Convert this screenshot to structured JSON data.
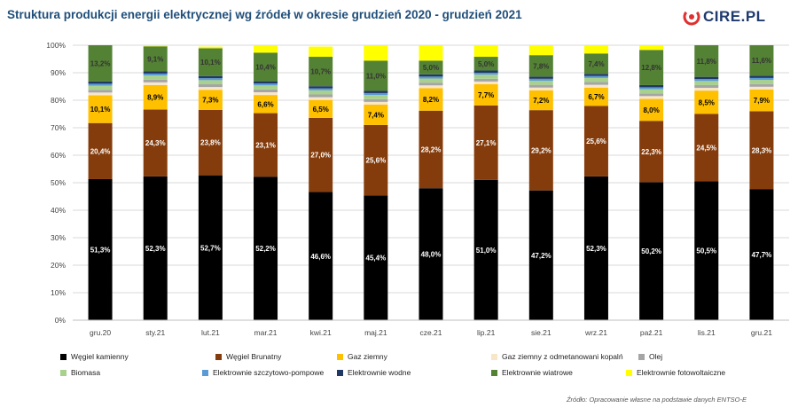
{
  "title": "Struktura produkcji energii elektrycznej wg źródeł w okresie grudzień 2020 - grudzień 2021",
  "logo_text": "CIRE.PL",
  "logo_icon": "cire-logo-icon",
  "source": "Źródło: Opracowanie własne na podstawie danych ENTSO-E",
  "chart_data": {
    "type": "bar",
    "stacked": true,
    "normalized": true,
    "categories": [
      "gru.20",
      "sty.21",
      "lut.21",
      "mar.21",
      "kwi.21",
      "maj.21",
      "cze.21",
      "lip.21",
      "sie.21",
      "wrz.21",
      "paź.21",
      "lis.21",
      "gru.21"
    ],
    "ylim": [
      0,
      100
    ],
    "yticks": [
      "0%",
      "10%",
      "20%",
      "30%",
      "40%",
      "50%",
      "60%",
      "70%",
      "80%",
      "90%",
      "100%"
    ],
    "grid": true,
    "legend_position": "bottom",
    "series": [
      {
        "name": "Węgiel kamienny",
        "color": "#000000",
        "label_color": "#ffffff",
        "values": [
          51.3,
          52.3,
          52.7,
          52.2,
          46.6,
          45.4,
          48.0,
          51.0,
          47.2,
          52.3,
          50.2,
          50.5,
          47.7
        ],
        "labels": [
          "51,3%",
          "52,3%",
          "52,7%",
          "52,2%",
          "46,6%",
          "45,4%",
          "48,0%",
          "51,0%",
          "47,2%",
          "52,3%",
          "50,2%",
          "50,5%",
          "47,7%"
        ]
      },
      {
        "name": "Węgiel Brunatny",
        "color": "#843c0c",
        "label_color": "#ffffff",
        "values": [
          20.4,
          24.3,
          23.8,
          23.1,
          27.0,
          25.6,
          28.2,
          27.1,
          29.2,
          25.6,
          22.3,
          24.5,
          28.3
        ],
        "labels": [
          "20,4%",
          "24,3%",
          "23,8%",
          "23,1%",
          "27,0%",
          "25,6%",
          "28,2%",
          "27,1%",
          "29,2%",
          "25,6%",
          "22,3%",
          "24,5%",
          "28,3%"
        ]
      },
      {
        "name": "Gaz  ziemny",
        "color": "#ffc000",
        "label_color": "#000000",
        "values": [
          10.1,
          8.9,
          7.3,
          6.6,
          6.5,
          7.4,
          8.2,
          7.7,
          7.2,
          6.7,
          8.0,
          8.5,
          7.9
        ],
        "labels": [
          "10,1%",
          "8,9%",
          "7,3%",
          "6,6%",
          "6,5%",
          "7,4%",
          "8,2%",
          "7,7%",
          "7,2%",
          "6,7%",
          "8,0%",
          "8,5%",
          "7,9%"
        ]
      },
      {
        "name": "Gaz ziemny z odmetanowani kopalń",
        "color": "#f8e6c8",
        "values": [
          1.0,
          1.0,
          1.0,
          1.0,
          1.0,
          1.0,
          1.0,
          1.0,
          1.0,
          1.0,
          1.0,
          1.0,
          1.0
        ]
      },
      {
        "name": "Olej",
        "color": "#a5a5a5",
        "values": [
          1.0,
          1.0,
          1.0,
          1.0,
          1.0,
          1.0,
          1.0,
          1.0,
          1.0,
          1.0,
          1.0,
          1.0,
          1.0
        ]
      },
      {
        "name": "Biomasa",
        "color": "#a9d18e",
        "values": [
          1.5,
          1.5,
          1.5,
          1.5,
          1.5,
          1.5,
          1.5,
          1.5,
          1.5,
          1.5,
          1.5,
          1.5,
          1.5
        ]
      },
      {
        "name": "Elektrownie szczytowo-pompowe",
        "color": "#5b9bd5",
        "values": [
          0.7,
          0.7,
          0.7,
          0.7,
          0.7,
          0.7,
          0.7,
          0.7,
          0.7,
          0.7,
          0.7,
          0.7,
          0.7
        ]
      },
      {
        "name": "Elektrownie wodne",
        "color": "#1f3864",
        "values": [
          0.8,
          0.8,
          0.8,
          0.8,
          0.8,
          0.8,
          0.8,
          0.8,
          0.8,
          0.8,
          0.8,
          0.8,
          0.8
        ]
      },
      {
        "name": "Elektrownie wiatrowe",
        "color": "#548235",
        "label_color": "#333333",
        "values": [
          13.2,
          9.1,
          10.1,
          10.4,
          10.7,
          11.0,
          5.0,
          5.0,
          7.8,
          7.4,
          12.8,
          11.8,
          11.6
        ],
        "labels": [
          "13,2%",
          "9,1%",
          "10,1%",
          "10,4%",
          "10,7%",
          "11,0%",
          "5,0%",
          "5,0%",
          "7,8%",
          "7,4%",
          "12,8%",
          "11,8%",
          "11,6%"
        ]
      },
      {
        "name": "Elektrownie fotowoltaiczne",
        "color": "#ffff00",
        "values": [
          0.0,
          0.2,
          0.6,
          2.5,
          3.7,
          5.6,
          6.1,
          4.8,
          5.5,
          3.5,
          2.5,
          0.2,
          0.3
        ]
      }
    ]
  }
}
